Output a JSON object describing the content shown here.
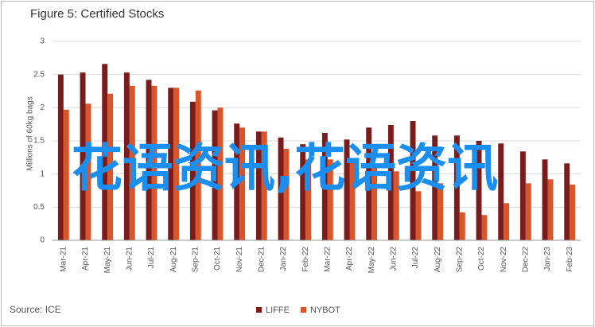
{
  "chart_data": {
    "type": "bar",
    "title": "Figure 5: Certified Stocks",
    "y_label": "Millions of 60kg bags",
    "source": "Source: ICE",
    "watermark": "花语资讯,花语资讯",
    "categories": [
      "Mar-21",
      "Apr-21",
      "May-21",
      "Jun-21",
      "Jul-21",
      "Aug-21",
      "Sep-21",
      "Oct-21",
      "Nov-21",
      "Dec-21",
      "Jan-22",
      "Feb-22",
      "Mar-22",
      "Apr-22",
      "May-22",
      "Jun-22",
      "Jul-22",
      "Aug-22",
      "Sep-22",
      "Oct-22",
      "Nov-22",
      "Dec-22",
      "Jan-23",
      "Feb-23"
    ],
    "series": [
      {
        "name": "LIFFE",
        "color": "#7b1c1c",
        "values": [
          2.5,
          2.53,
          2.66,
          2.53,
          2.42,
          2.3,
          2.09,
          1.96,
          1.76,
          1.64,
          1.55,
          1.45,
          1.62,
          1.52,
          1.7,
          1.74,
          1.8,
          1.58,
          1.58,
          1.5,
          1.46,
          1.34,
          1.22,
          1.16
        ]
      },
      {
        "name": "NYBOT",
        "color": "#d9552a",
        "values": [
          1.97,
          2.06,
          2.21,
          2.33,
          2.33,
          2.3,
          2.26,
          2.0,
          1.7,
          1.64,
          1.38,
          1.22,
          1.22,
          1.19,
          1.13,
          1.04,
          0.74,
          0.86,
          0.42,
          0.38,
          0.56,
          0.86,
          0.92,
          0.84
        ]
      }
    ],
    "ylim": [
      0,
      3
    ],
    "yticks": [
      0,
      0.5,
      1,
      1.5,
      2,
      2.5,
      3
    ],
    "grid": true,
    "legend": "bottom"
  }
}
